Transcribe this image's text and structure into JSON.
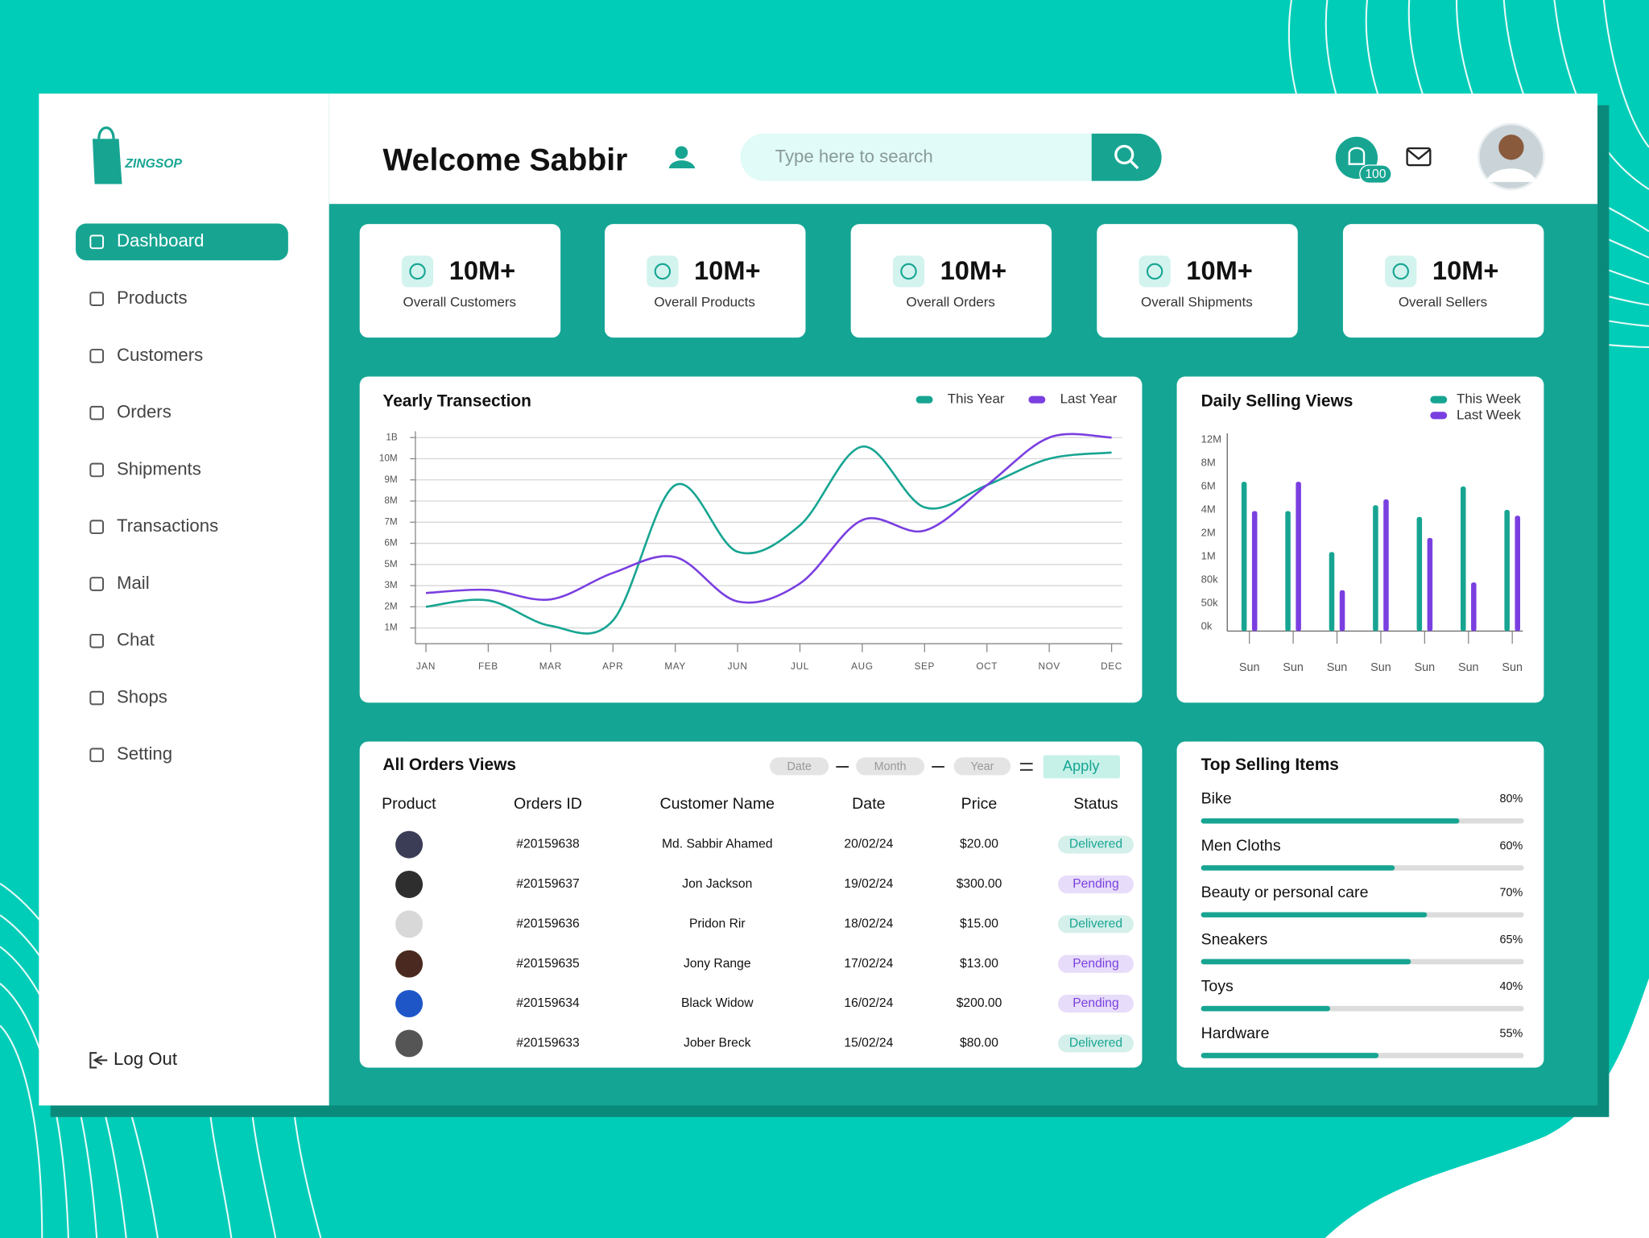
{
  "brand": "ZINGSOP",
  "sidebar": {
    "items": [
      "Dashboard",
      "Products",
      "Customers",
      "Orders",
      "Shipments",
      "Transactions",
      "Mail",
      "Chat",
      "Shops",
      "Setting"
    ],
    "logout": "Log Out"
  },
  "header": {
    "title": "Welcome Sabbir",
    "search_placeholder": "Type here to search",
    "notifications": "100"
  },
  "stats": [
    {
      "value": "10M+",
      "label": "Overall Customers"
    },
    {
      "value": "10M+",
      "label": "Overall Products"
    },
    {
      "value": "10M+",
      "label": "Overall Orders"
    },
    {
      "value": "10M+",
      "label": "Overall Shipments"
    },
    {
      "value": "10M+",
      "label": "Overall Sellers"
    }
  ],
  "yearly_chart": {
    "type": "line",
    "title": "Yearly Transection",
    "categories": [
      "JAN",
      "FEB",
      "MAR",
      "APR",
      "MAY",
      "JUN",
      "JUL",
      "AUG",
      "SEP",
      "OCT",
      "NOV",
      "DEC"
    ],
    "series": [
      {
        "name": "This Year",
        "color": "#17a592",
        "values": [
          2,
          2.3,
          1.1,
          1.35,
          8.75,
          5.6,
          6.85,
          576,
          7.7,
          8.75,
          10,
          300
        ]
      },
      {
        "name": "Last Year",
        "color": "#7a3fe0",
        "values": [
          2.65,
          2.8,
          2.35,
          4.2,
          5.35,
          2.25,
          3.2,
          7.1,
          6.6,
          8.75,
          1000,
          1000
        ]
      }
    ],
    "ylim": [
      0,
      1000
    ],
    "yticks": [
      {
        "value": 1,
        "label": "1M"
      },
      {
        "value": 2,
        "label": "2M"
      },
      {
        "value": 3,
        "label": "3M"
      },
      {
        "value": 5,
        "label": "5M"
      },
      {
        "value": 6,
        "label": "6M"
      },
      {
        "value": 7,
        "label": "7M"
      },
      {
        "value": 8,
        "label": "8M"
      },
      {
        "value": 9,
        "label": "9M"
      },
      {
        "value": 10,
        "label": "10M"
      },
      {
        "value": 1000,
        "label": "1B"
      }
    ],
    "grid": true
  },
  "daily_chart": {
    "type": "bar",
    "title": "Daily Selling Views",
    "categories": [
      "Sun",
      "Sun",
      "Sun",
      "Sun",
      "Sun",
      "Sun",
      "Sun"
    ],
    "series": [
      {
        "name": "This Week",
        "color": "#17a592",
        "values": [
          6400000,
          3900000,
          1200000,
          4400000,
          3400000,
          6000000,
          4000000
        ]
      },
      {
        "name": "Last Week",
        "color": "#7a3fe0",
        "values": [
          3900000,
          6400000,
          67000,
          4900000,
          1800000,
          77000,
          3500000
        ]
      }
    ],
    "ylim": [
      0,
      12000000
    ],
    "yticks": [
      {
        "value": 0,
        "label": "0k"
      },
      {
        "value": 50000,
        "label": "50k"
      },
      {
        "value": 80000,
        "label": "80k"
      },
      {
        "value": 1000000,
        "label": "1M"
      },
      {
        "value": 2000000,
        "label": "2M"
      },
      {
        "value": 4000000,
        "label": "4M"
      },
      {
        "value": 6000000,
        "label": "6M"
      },
      {
        "value": 8000000,
        "label": "8M"
      },
      {
        "value": 12000000,
        "label": "12M"
      }
    ]
  },
  "orders": {
    "title": "All Orders Views",
    "filters": [
      "Date",
      "Month",
      "Year"
    ],
    "apply": "Apply",
    "columns": [
      "Product",
      "Orders ID",
      "Customer Name",
      "Date",
      "Price",
      "Status"
    ],
    "rows": [
      {
        "id": "#20159638",
        "customer": "Md. Sabbir Ahamed",
        "date": "20/02/24",
        "price": "$20.00",
        "status": "Delivered",
        "status_color": "#17a592"
      },
      {
        "id": "#20159637",
        "customer": "Jon Jackson",
        "date": "19/02/24",
        "price": "$300.00",
        "status": "Pending",
        "status_color": "#7a3fe0"
      },
      {
        "id": "#20159636",
        "customer": "Pridon Rir",
        "date": "18/02/24",
        "price": "$15.00",
        "status": "Delivered",
        "status_color": "#17a592"
      },
      {
        "id": "#20159635",
        "customer": "Jony Range",
        "date": "17/02/24",
        "price": "$13.00",
        "status": "Pending",
        "status_color": "#7a3fe0"
      },
      {
        "id": "#20159634",
        "customer": "Black Widow",
        "date": "16/02/24",
        "price": "$200.00",
        "status": "Pending",
        "status_color": "#7a3fe0"
      },
      {
        "id": "#20159633",
        "customer": "Jober Breck",
        "date": "15/02/24",
        "price": "$80.00",
        "status": "Delivered",
        "status_color": "#17a592"
      }
    ]
  },
  "top_selling": {
    "title": "Top Selling Items",
    "xlim": [
      0,
      100
    ],
    "color": "#17a592",
    "items": [
      {
        "name": "Bike",
        "value": 80,
        "value_label": "80%"
      },
      {
        "name": "Men Cloths",
        "value": 60,
        "value_label": "60%"
      },
      {
        "name": "Beauty or personal care",
        "value": 70,
        "value_label": "70%"
      },
      {
        "name": "Sneakers",
        "value": 65,
        "value_label": "65%"
      },
      {
        "name": "Toys",
        "value": 40,
        "value_label": "40%"
      },
      {
        "name": "Hardware",
        "value": 55,
        "value_label": "55%"
      }
    ]
  }
}
